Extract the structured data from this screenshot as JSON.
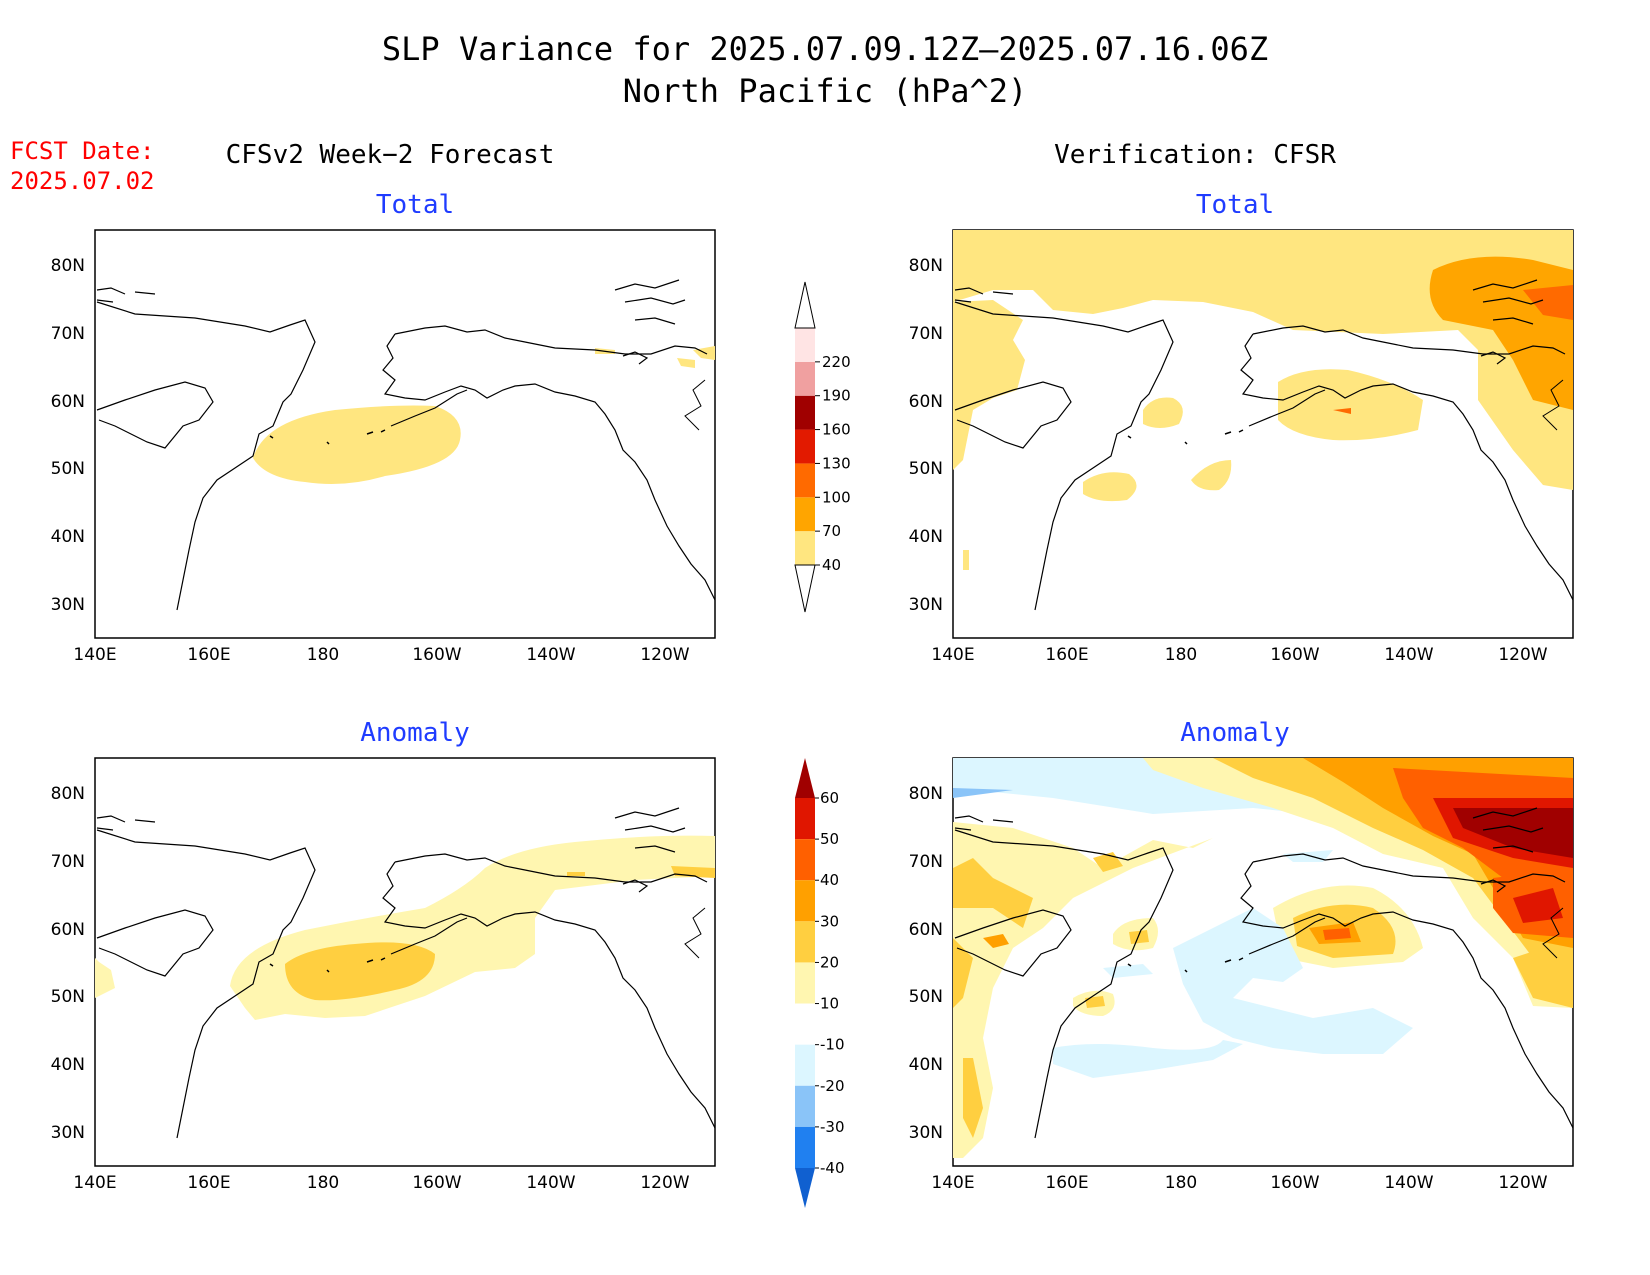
{
  "header": {
    "title_line1": "SLP Variance for 2025.07.09.12Z—2025.07.16.06Z",
    "title_line2": "North Pacific (hPa^2)"
  },
  "fcst": {
    "label": "FCST Date:",
    "date": "2025.07.02"
  },
  "columns": {
    "left_title": "CFSv2 Week−2 Forecast",
    "right_title": "Verification: CFSR"
  },
  "panels": {
    "top_left_label": "Total",
    "top_right_label": "Total",
    "bottom_left_label": "Anomaly",
    "bottom_right_label": "Anomaly"
  },
  "axes": {
    "lat_labels": [
      "80N",
      "70N",
      "60N",
      "50N",
      "40N",
      "30N"
    ],
    "lon_labels": [
      "140E",
      "160E",
      "180",
      "160W",
      "140W",
      "120W"
    ]
  },
  "colorbars": {
    "total": {
      "levels": [
        "40",
        "70",
        "100",
        "130",
        "160",
        "190",
        "220"
      ],
      "colors": [
        "#ffe680",
        "#ffa500",
        "#ff6a00",
        "#e21a00",
        "#a00000",
        "#f0a0a0",
        "#ffe4e4"
      ]
    },
    "anomaly": {
      "levels": [
        "-40",
        "-30",
        "-20",
        "-10",
        "10",
        "20",
        "30",
        "40",
        "50",
        "60"
      ],
      "colors": [
        "#1060d0",
        "#2080f0",
        "#8ac4f8",
        "#dcf6ff",
        "#ffffff",
        "#fff6b0",
        "#ffcf40",
        "#ffa000",
        "#ff6000",
        "#e01600",
        "#a00000"
      ]
    }
  }
}
